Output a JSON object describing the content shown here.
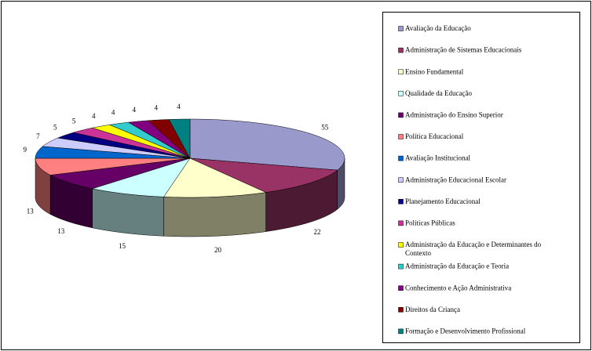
{
  "chart_data": {
    "type": "pie3d",
    "categories": [
      "Avaliação da Educação",
      "Administração de Sistemas Educacionais",
      "Ensino Fundamental",
      "Qualidade da Educação",
      "Administração do Ensino Superior",
      "Política Educacional",
      "Avaliação Institucional",
      "Administração Educacional Escolar",
      "Planejamento Educacional",
      "Políticas Públicas",
      "Administração da Educação e Determinantes do Contexto",
      "Administração da Educação e Teoria",
      "Conhecimento e Ação Administrativa",
      "Direitos da Criança",
      "Formação e Desenvolvimento Profissional"
    ],
    "values": [
      55,
      22,
      20,
      15,
      13,
      13,
      9,
      7,
      5,
      5,
      4,
      4,
      4,
      4,
      4
    ],
    "colors": [
      "#9999cc",
      "#993366",
      "#ffffcc",
      "#ccffff",
      "#660066",
      "#ff8080",
      "#0066cc",
      "#ccccff",
      "#000080",
      "#cc3399",
      "#ffff00",
      "#33cccc",
      "#800080",
      "#800000",
      "#008080"
    ],
    "legend": "right"
  }
}
